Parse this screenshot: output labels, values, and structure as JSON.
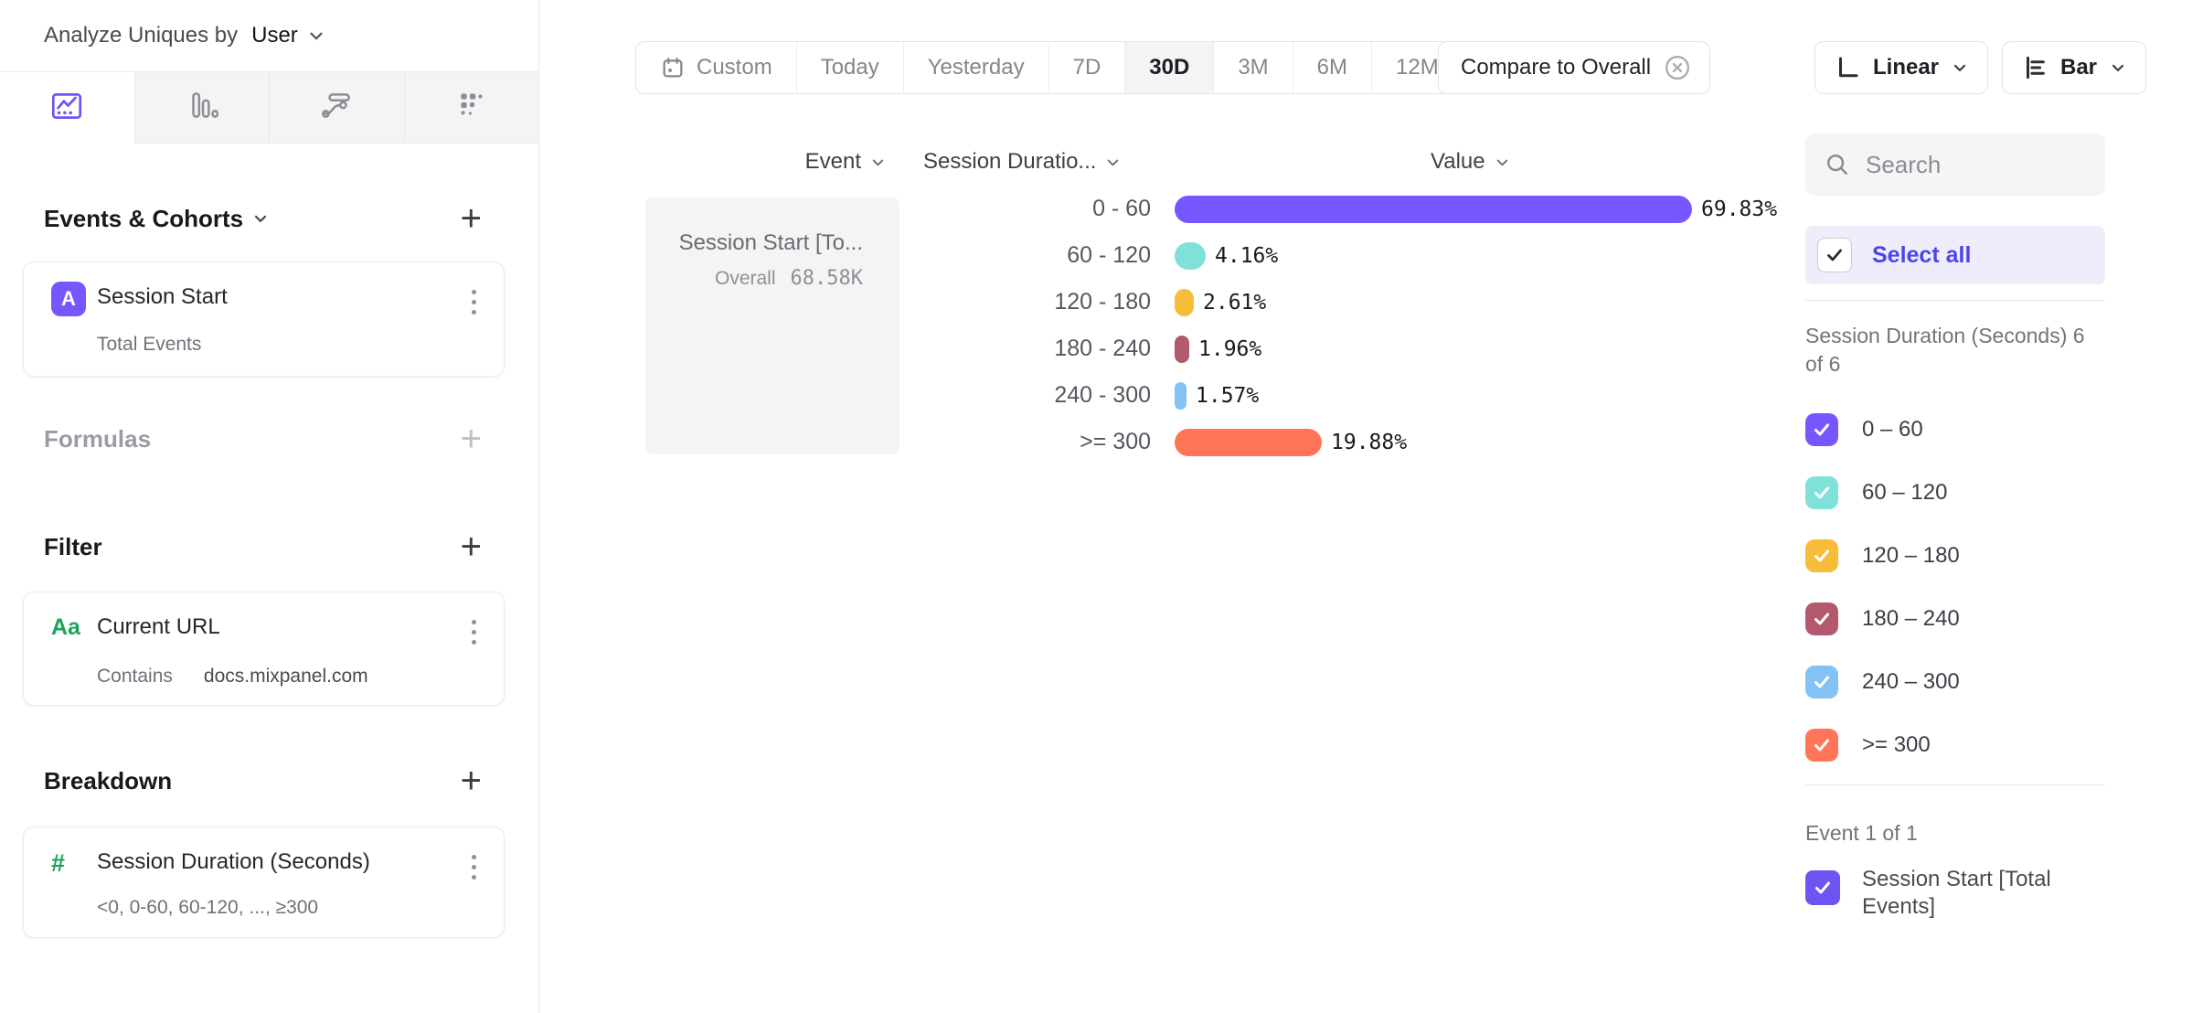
{
  "left_panel": {
    "analyze_label": "Analyze Uniques by",
    "analyze_value": "User",
    "tabs": [
      {
        "name": "insights",
        "icon": "line-chart-icon",
        "active": true
      },
      {
        "name": "funnels",
        "icon": "bar-chart-icon",
        "active": false
      },
      {
        "name": "flows",
        "icon": "flows-icon",
        "active": false
      },
      {
        "name": "retention",
        "icon": "retention-grid-icon",
        "active": false
      }
    ],
    "events_section": {
      "title": "Events & Cohorts",
      "card": {
        "badge": "A",
        "title": "Session Start",
        "subtitle": "Total Events"
      }
    },
    "formulas_section": {
      "title": "Formulas"
    },
    "filter_section": {
      "title": "Filter",
      "card": {
        "icon_glyph": "Aa",
        "title": "Current URL",
        "operator": "Contains",
        "value": "docs.mixpanel.com"
      }
    },
    "breakdown_section": {
      "title": "Breakdown",
      "card": {
        "icon_glyph": "#",
        "title": "Session Duration (Seconds)",
        "subtitle": "<0, 0-60, 60-120, ..., ≥300"
      }
    }
  },
  "toolbar": {
    "date_ranges": [
      "Custom",
      "Today",
      "Yesterday",
      "7D",
      "30D",
      "3M",
      "6M",
      "12M"
    ],
    "selected_range": "30D",
    "custom_icon": "calendar-icon",
    "compare_chip": {
      "label": "Compare to Overall",
      "icon": "close-circle-icon"
    },
    "scale_button": {
      "label": "Linear",
      "icon": "linear-axis-icon"
    },
    "chart_type_button": {
      "label": "Bar",
      "icon": "bar-rows-icon"
    }
  },
  "chart": {
    "columns": {
      "event": "Event",
      "breakdown": "Session Duratio...",
      "value": "Value"
    },
    "event_cell": {
      "title": "Session Start [To...",
      "overall_label": "Overall",
      "overall_value": "68.58K"
    },
    "rows": [
      {
        "label": "0 - 60",
        "value": 69.83,
        "display": "69.83%",
        "color": "#7856FF"
      },
      {
        "label": "60 - 120",
        "value": 4.16,
        "display": "4.16%",
        "color": "#80E1D9"
      },
      {
        "label": "120 - 180",
        "value": 2.61,
        "display": "2.61%",
        "color": "#F8BC3B"
      },
      {
        "label": "180 - 240",
        "value": 1.96,
        "display": "1.96%",
        "color": "#B2596E"
      },
      {
        "label": "240 - 300",
        "value": 1.57,
        "display": "1.57%",
        "color": "#82C2F4"
      },
      {
        "label": ">= 300",
        "value": 19.88,
        "display": "19.88%",
        "color": "#FF7557"
      }
    ]
  },
  "chart_data": {
    "type": "bar",
    "orientation": "horizontal",
    "categories": [
      "0 - 60",
      "60 - 120",
      "120 - 180",
      "180 - 240",
      "240 - 300",
      ">= 300"
    ],
    "values": [
      69.83,
      4.16,
      2.61,
      1.96,
      1.57,
      19.88
    ],
    "unit": "%",
    "series_name": "Session Start [Total Events]",
    "overall_total": "68.58K",
    "colors": [
      "#7856FF",
      "#80E1D9",
      "#F8BC3B",
      "#B2596E",
      "#82C2F4",
      "#FF7557"
    ],
    "xlim": [
      0,
      100
    ],
    "grid": false,
    "legend_position": "right-sidebar-checkbox-list"
  },
  "sidebar": {
    "search_placeholder": "Search",
    "select_all_label": "Select all",
    "group_header": "Session Duration (Seconds) 6 of 6",
    "items": [
      {
        "label": "0 – 60",
        "checked": true,
        "color": "#7856FF"
      },
      {
        "label": "60 – 120",
        "checked": true,
        "color": "#80E1D9"
      },
      {
        "label": "120 – 180",
        "checked": true,
        "color": "#F8BC3B"
      },
      {
        "label": "180 – 240",
        "checked": true,
        "color": "#B2596E"
      },
      {
        "label": "240 – 300",
        "checked": true,
        "color": "#82C2F4"
      },
      {
        "label": ">= 300",
        "checked": true,
        "color": "#FF7557"
      }
    ],
    "event_header": "Event 1 of 1",
    "event_item": {
      "label": "Session Start [Total Events]",
      "checked": true,
      "color": "#6C55F0"
    }
  },
  "accent_colors": {
    "brand_purple": "#7856FF",
    "select_all_text": "#4F44E8",
    "green_property": "#1DA25E"
  }
}
